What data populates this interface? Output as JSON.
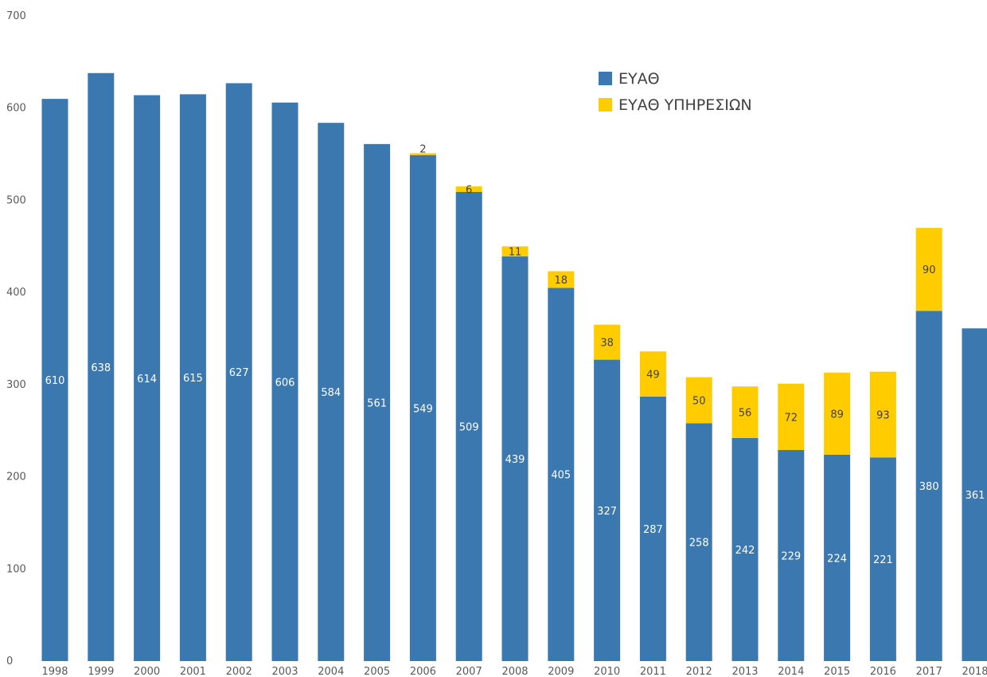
{
  "chart_data": {
    "type": "bar",
    "stacked": true,
    "categories": [
      "1998",
      "1999",
      "2000",
      "2001",
      "2002",
      "2003",
      "2004",
      "2005",
      "2006",
      "2007",
      "2008",
      "2009",
      "2010",
      "2011",
      "2012",
      "2013",
      "2014",
      "2015",
      "2016",
      "2017",
      "2018"
    ],
    "series": [
      {
        "name": "ΕΥΑΘ",
        "color": "#3b78b0",
        "values": [
          610,
          638,
          614,
          615,
          627,
          606,
          584,
          561,
          549,
          509,
          439,
          405,
          327,
          287,
          258,
          242,
          229,
          224,
          221,
          380,
          361
        ]
      },
      {
        "name": "ΕΥΑΘ ΥΠΗΡΕΣΙΩΝ",
        "color": "#ffcc00",
        "values": [
          null,
          null,
          null,
          null,
          null,
          null,
          null,
          null,
          2,
          6,
          11,
          18,
          38,
          49,
          50,
          56,
          72,
          89,
          93,
          90,
          null
        ]
      }
    ],
    "ylim": [
      0,
      700
    ],
    "yticks": [
      "0",
      "100",
      "200",
      "300",
      "400",
      "500",
      "600",
      "700"
    ],
    "grid": false,
    "legend_position": "top-right"
  }
}
